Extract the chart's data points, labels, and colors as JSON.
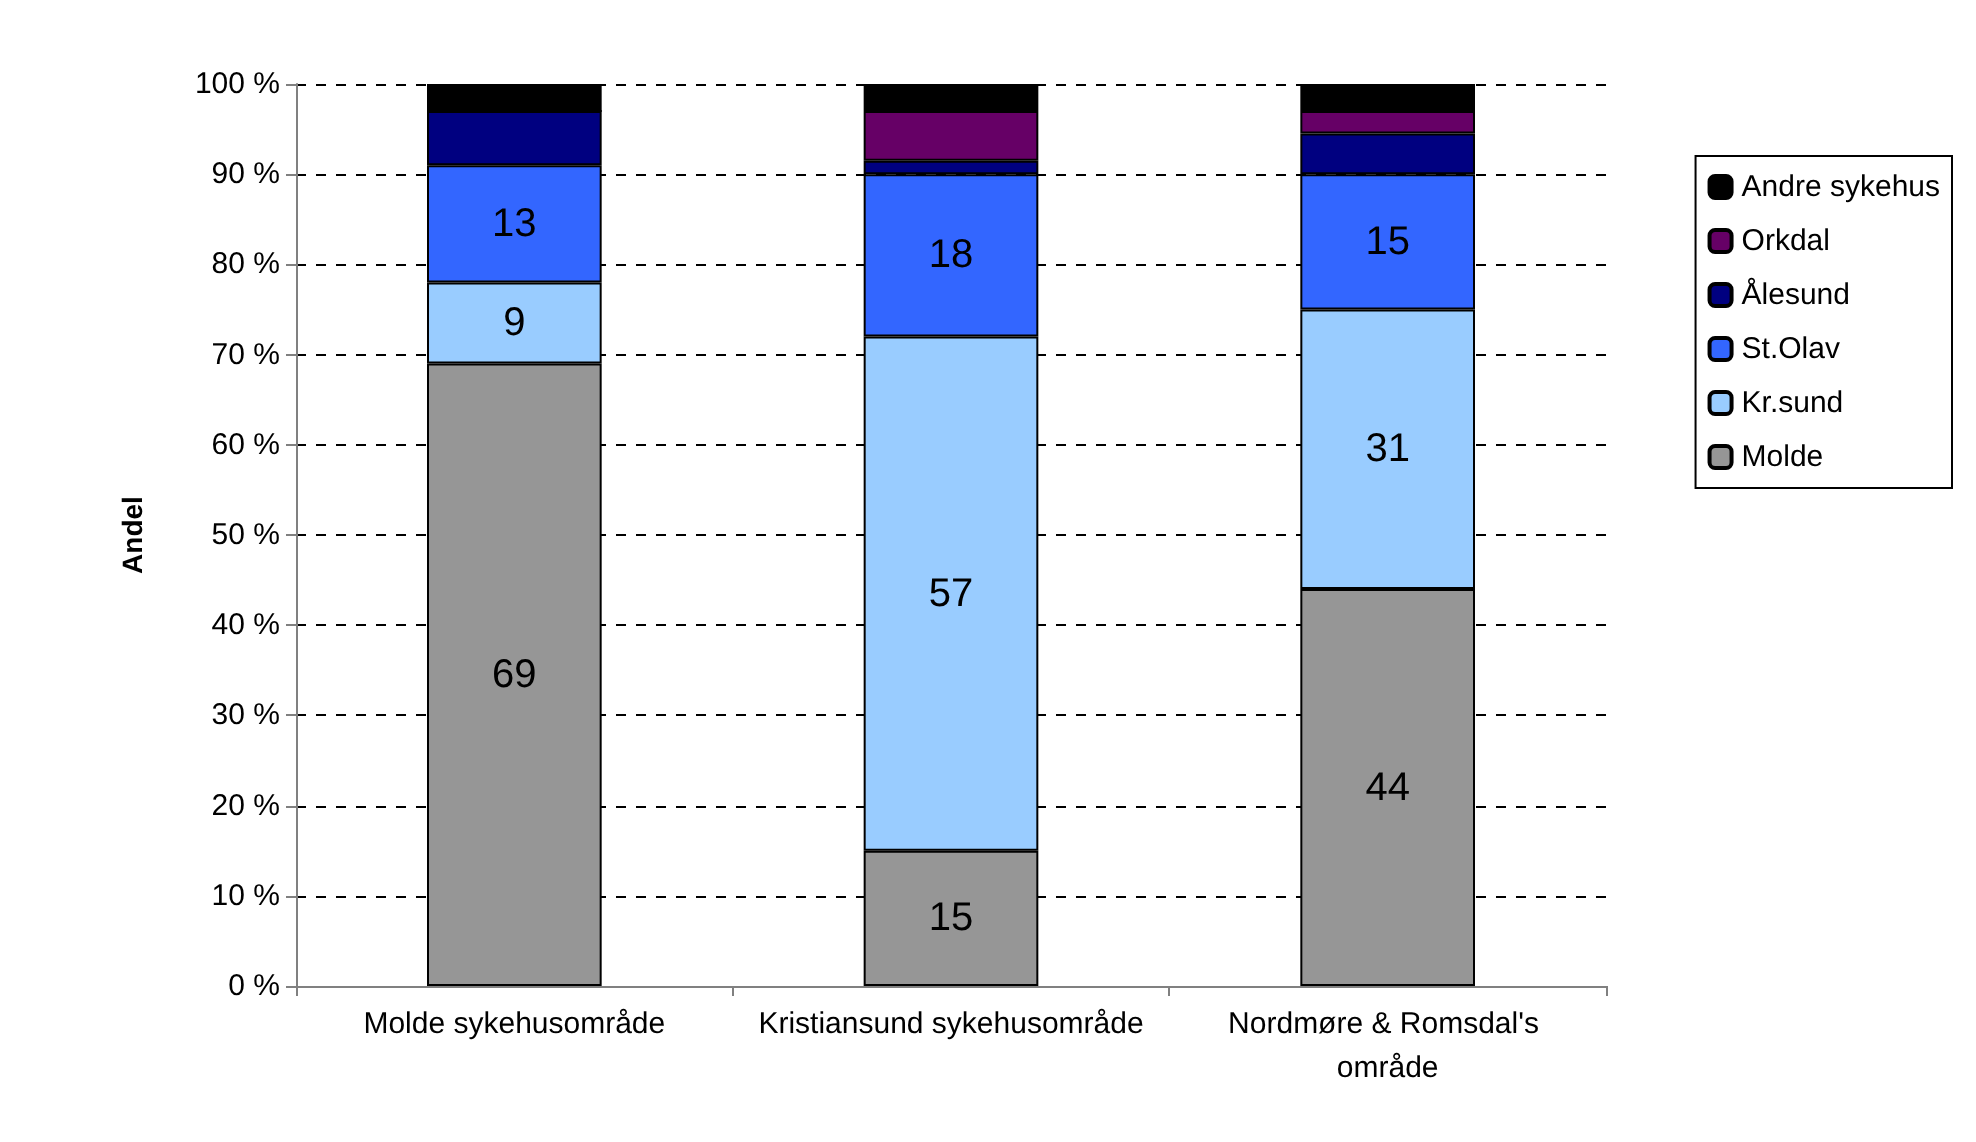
{
  "chart_data": {
    "type": "bar",
    "stacked": true,
    "ylabel": "Andel",
    "categories": [
      "Molde sykehusområde",
      "Kristiansund sykehusområde",
      "Nordmøre & Romsdal's område"
    ],
    "series": [
      {
        "name": "Molde",
        "color": "#969696",
        "values": [
          69,
          15,
          44
        ],
        "value_labels": [
          "69",
          "15",
          "44"
        ]
      },
      {
        "name": "Kr.sund",
        "color": "#99ccff",
        "values": [
          9,
          57,
          31
        ],
        "value_labels": [
          "9",
          "57",
          "31"
        ]
      },
      {
        "name": "St.Olav",
        "color": "#3366ff",
        "values": [
          13,
          18,
          15
        ],
        "value_labels": [
          "13",
          "18",
          "15"
        ]
      },
      {
        "name": "Ålesund",
        "color": "#000080",
        "values": [
          6,
          1.5,
          4.5
        ]
      },
      {
        "name": "Orkdal",
        "color": "#660066",
        "values": [
          0,
          5.5,
          2.5
        ]
      },
      {
        "name": "Andre sykehus",
        "color": "#000000",
        "values": [
          3,
          3,
          3
        ]
      }
    ],
    "ylim": [
      0,
      100
    ],
    "yticks": [
      {
        "value": 0,
        "label": "0 %"
      },
      {
        "value": 10,
        "label": "10 %"
      },
      {
        "value": 20,
        "label": "20 %"
      },
      {
        "value": 30,
        "label": "30 %"
      },
      {
        "value": 40,
        "label": "40 %"
      },
      {
        "value": 50,
        "label": "50 %"
      },
      {
        "value": 60,
        "label": "60 %"
      },
      {
        "value": 70,
        "label": "70 %"
      },
      {
        "value": 80,
        "label": "80 %"
      },
      {
        "value": 90,
        "label": "90 %"
      },
      {
        "value": 100,
        "label": "100 %"
      }
    ],
    "grid": "y",
    "legend": "right"
  }
}
